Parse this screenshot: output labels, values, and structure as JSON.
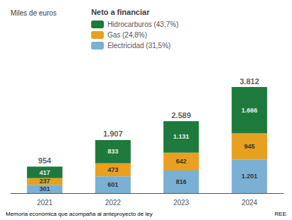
{
  "chart_data": {
    "type": "bar",
    "stacked": true,
    "subtitle": "Miles de euros",
    "legend_title": "Neto a financiar",
    "annotations": [
      "Memoria económica que acompaña al anteproyecto de ley",
      "REE"
    ],
    "categories": [
      "2021",
      "2022",
      "2023",
      "2024"
    ],
    "series": [
      {
        "name": "Electricidad (31,5%)",
        "color": "#7ab0d4",
        "values": [
          301,
          601,
          816,
          1201
        ],
        "value_labels": [
          "301",
          "601",
          "816",
          "1.201"
        ]
      },
      {
        "name": "Gas (24,8%)",
        "color": "#e8a020",
        "values": [
          237,
          473,
          642,
          945
        ],
        "value_labels": [
          "237",
          "473",
          "642",
          "945"
        ]
      },
      {
        "name": "Hidrocarburos (43,7%)",
        "color": "#1e7a3c",
        "values": [
          417,
          833,
          1131,
          1666
        ],
        "value_labels": [
          "417",
          "833",
          "1.131",
          "1.666"
        ]
      }
    ],
    "totals": [
      954,
      1907,
      2589,
      3812
    ],
    "total_labels": [
      "954",
      "1.907",
      "2.589",
      "3.812"
    ],
    "ylim": [
      0,
      4600
    ],
    "tick_labels": "x",
    "grid": false,
    "legend": "top",
    "data_labels": true
  }
}
